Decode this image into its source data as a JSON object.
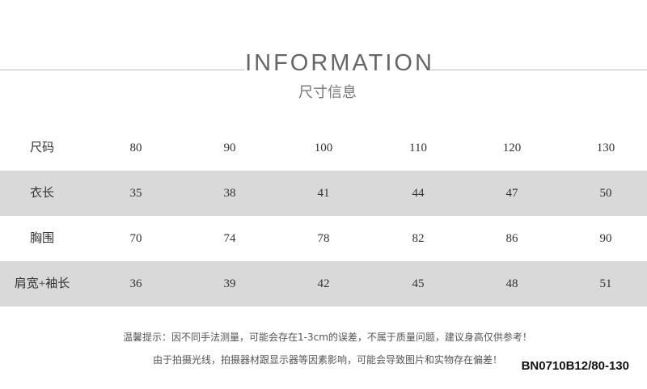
{
  "header": {
    "title": "INFORMATION",
    "subtitle": "尺寸信息"
  },
  "table": {
    "rows": [
      [
        "尺码",
        80,
        90,
        100,
        110,
        120,
        130
      ],
      [
        "衣长",
        35,
        38,
        41,
        44,
        47,
        50
      ],
      [
        "胸围",
        70,
        74,
        78,
        82,
        86,
        90
      ],
      [
        "肩宽+袖长",
        36,
        39,
        42,
        45,
        48,
        51
      ]
    ]
  },
  "notes": [
    "温馨提示：因不同手法测量，可能会存在1-3cm的误差，不属于质量问题，建议身高仅供参考！",
    "由于拍摄光线，拍摄器材跟显示器等因素影响，可能会导致图片和实物存在偏差！"
  ],
  "product_code": "BN0710B12/80-130"
}
